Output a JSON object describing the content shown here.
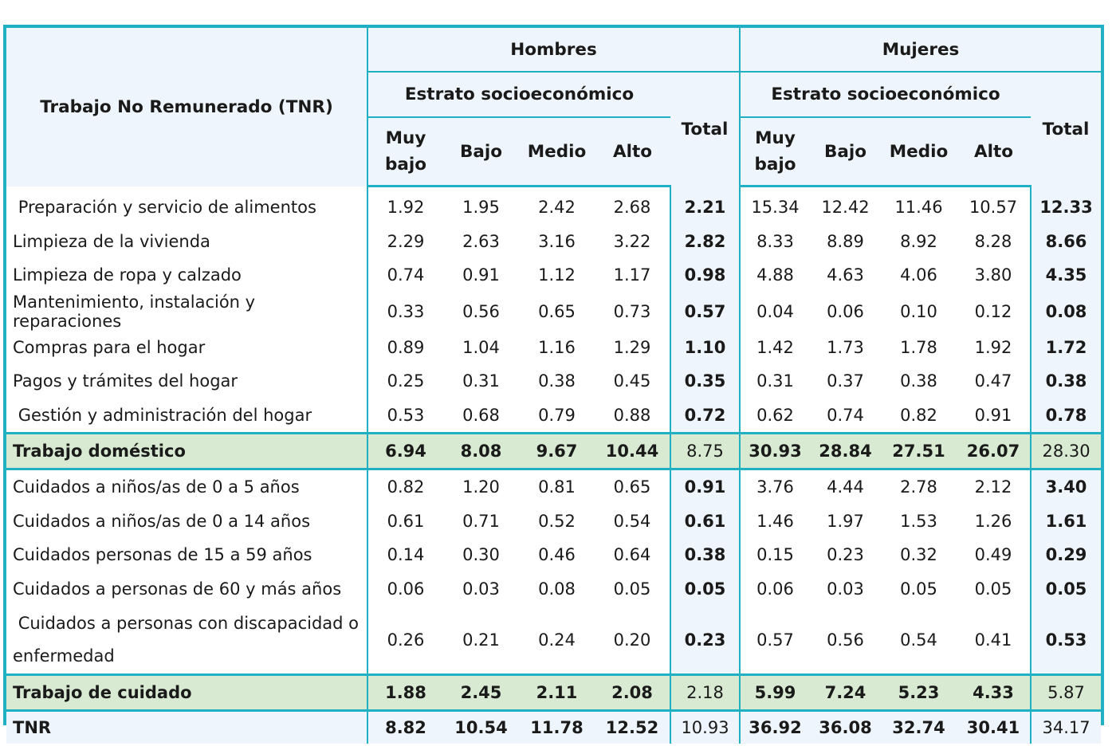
{
  "header": {
    "row_label": "Trabajo No Remunerado (TNR)",
    "groups": [
      "Hombres",
      "Mujeres"
    ],
    "subgroup": "Estrato socioeconómico",
    "total": "Total",
    "strata": [
      "Muy bajo",
      "Bajo",
      "Medio",
      "Alto"
    ]
  },
  "rows": [
    {
      "label": " Preparación y servicio de alimentos",
      "values": [
        "1.92",
        "1.95",
        "2.42",
        "2.68",
        "2.21",
        "15.34",
        "12.42",
        "11.46",
        "10.57",
        "12.33"
      ],
      "kind": "item"
    },
    {
      "label": "Limpieza de la vivienda",
      "values": [
        "2.29",
        "2.63",
        "3.16",
        "3.22",
        "2.82",
        "8.33",
        "8.89",
        "8.92",
        "8.28",
        "8.66"
      ],
      "kind": "item"
    },
    {
      "label": "Limpieza de ropa y calzado",
      "values": [
        "0.74",
        "0.91",
        "1.12",
        "1.17",
        "0.98",
        "4.88",
        "4.63",
        "4.06",
        "3.80",
        "4.35"
      ],
      "kind": "item"
    },
    {
      "label": "Mantenimiento, instalación y reparaciones",
      "values": [
        "0.33",
        "0.56",
        "0.65",
        "0.73",
        "0.57",
        "0.04",
        "0.06",
        "0.10",
        "0.12",
        "0.08"
      ],
      "kind": "item"
    },
    {
      "label": "Compras para el hogar",
      "values": [
        "0.89",
        "1.04",
        "1.16",
        "1.29",
        "1.10",
        "1.42",
        "1.73",
        "1.78",
        "1.92",
        "1.72"
      ],
      "kind": "item"
    },
    {
      "label": "Pagos y trámites del hogar",
      "values": [
        "0.25",
        "0.31",
        "0.38",
        "0.45",
        "0.35",
        "0.31",
        "0.37",
        "0.38",
        "0.47",
        "0.38"
      ],
      "kind": "item"
    },
    {
      "label": " Gestión y administración del hogar",
      "values": [
        "0.53",
        "0.68",
        "0.79",
        "0.88",
        "0.72",
        "0.62",
        "0.74",
        "0.82",
        "0.91",
        "0.78"
      ],
      "kind": "item"
    },
    {
      "label": "Trabajo doméstico",
      "values": [
        "6.94",
        "8.08",
        "9.67",
        "10.44",
        "8.75",
        "30.93",
        "28.84",
        "27.51",
        "26.07",
        "28.30"
      ],
      "kind": "sum"
    },
    {
      "label": "Cuidados a niños/as de 0 a 5 años",
      "values": [
        "0.82",
        "1.20",
        "0.81",
        "0.65",
        "0.91",
        "3.76",
        "4.44",
        "2.78",
        "2.12",
        "3.40"
      ],
      "kind": "item"
    },
    {
      "label": "Cuidados a niños/as de 0 a 14 años",
      "values": [
        "0.61",
        "0.71",
        "0.52",
        "0.54",
        "0.61",
        "1.46",
        "1.97",
        "1.53",
        "1.26",
        "1.61"
      ],
      "kind": "item"
    },
    {
      "label": "Cuidados personas de 15 a 59 años",
      "values": [
        "0.14",
        "0.30",
        "0.46",
        "0.64",
        "0.38",
        "0.15",
        "0.23",
        "0.32",
        "0.49",
        "0.29"
      ],
      "kind": "item"
    },
    {
      "label": "Cuidados a personas de 60 y más años",
      "values": [
        "0.06",
        "0.03",
        "0.08",
        "0.05",
        "0.05",
        "0.06",
        "0.03",
        "0.05",
        "0.05",
        "0.05"
      ],
      "kind": "item"
    },
    {
      "label": " Cuidados a personas con discapacidad o enfermedad",
      "values": [
        "0.26",
        "0.21",
        "0.24",
        "0.20",
        "0.23",
        "0.57",
        "0.56",
        "0.54",
        "0.41",
        "0.53"
      ],
      "kind": "tall"
    },
    {
      "label": "Trabajo de cuidado",
      "values": [
        "1.88",
        "2.45",
        "2.11",
        "2.08",
        "2.18",
        "5.99",
        "7.24",
        "5.23",
        "4.33",
        "5.87"
      ],
      "kind": "sum"
    },
    {
      "label": "TNR",
      "values": [
        "8.82",
        "10.54",
        "11.78",
        "12.52",
        "10.93",
        "36.92",
        "36.08",
        "32.74",
        "30.41",
        "34.17"
      ],
      "kind": "tnr"
    }
  ]
}
